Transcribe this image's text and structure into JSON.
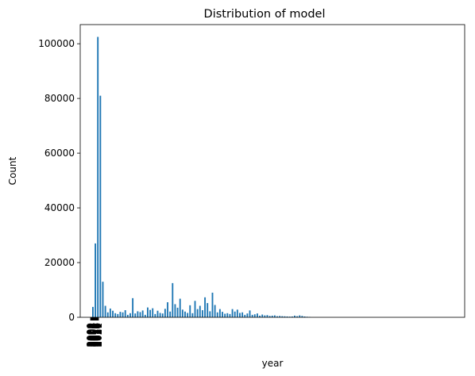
{
  "chart_data": {
    "type": "bar",
    "title": "Distribution of model",
    "xlabel": "year",
    "ylabel": "Count",
    "ylim": [
      0,
      107000
    ],
    "yticks": [
      0,
      20000,
      40000,
      60000,
      80000,
      100000
    ],
    "xtick_labels": [
      "2000",
      "2001",
      "2002",
      "2003",
      "2004",
      "2005",
      "2006",
      "2007",
      "2008",
      "2009",
      "2010",
      "2011",
      "2012",
      "2013",
      "2014",
      "2015",
      "2016",
      "2017",
      "2018",
      "2019",
      "2020",
      "2021"
    ],
    "grid": false,
    "legend": "none",
    "series": [
      {
        "color": "#1f77b4",
        "categories_count": 88,
        "values": [
          3800,
          27000,
          102500,
          81000,
          13000,
          4200,
          1800,
          3200,
          2400,
          1500,
          1200,
          2000,
          1800,
          2600,
          900,
          1500,
          7000,
          1400,
          2200,
          1900,
          2500,
          900,
          3600,
          2700,
          3300,
          1200,
          2400,
          1600,
          1400,
          3100,
          5500,
          2100,
          12500,
          4800,
          3500,
          6800,
          2800,
          2100,
          1600,
          4400,
          1500,
          6000,
          3000,
          4200,
          2600,
          7300,
          5200,
          2200,
          9000,
          4500,
          1800,
          3000,
          2000,
          1300,
          1500,
          1200,
          3000,
          2100,
          2800,
          1600,
          1800,
          900,
          1400,
          2500,
          900,
          1100,
          1400,
          600,
          1000,
          700,
          800,
          500,
          600,
          700,
          400,
          500,
          400,
          350,
          300,
          250,
          300,
          600,
          400,
          700,
          500,
          300,
          200,
          150
        ]
      }
    ]
  }
}
